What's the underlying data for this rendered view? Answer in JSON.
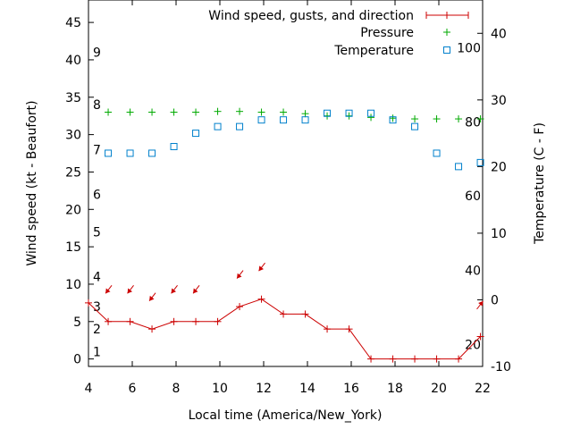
{
  "chart_data": {
    "type": "line",
    "xlabel": "Local time (America/New_York)",
    "ylabel_left": "Wind speed (kt - Beaufort)",
    "ylabel_right": "Temperature (C - F)",
    "xlim": [
      4,
      22
    ],
    "xticks": [
      "4",
      "6",
      "8",
      "10",
      "12",
      "14",
      "16",
      "18",
      "20",
      "22"
    ],
    "ylim_left": [
      -1,
      48
    ],
    "yticks_left": [
      "0",
      "5",
      "10",
      "15",
      "20",
      "25",
      "30",
      "35",
      "40",
      "45"
    ],
    "ylim_right": [
      -10,
      45
    ],
    "yticks_right": [
      "-10",
      "0",
      "10",
      "20",
      "30",
      "40"
    ],
    "beaufort_labels": [
      {
        "label": "1",
        "wind": 1
      },
      {
        "label": "2",
        "wind": 4
      },
      {
        "label": "3",
        "wind": 7
      },
      {
        "label": "4",
        "wind": 11
      },
      {
        "label": "5",
        "wind": 17
      },
      {
        "label": "6",
        "wind": 22
      },
      {
        "label": "7",
        "wind": 28
      },
      {
        "label": "8",
        "wind": 34
      },
      {
        "label": "9",
        "wind": 41
      }
    ],
    "fahrenheit_labels": [
      {
        "label": "20",
        "celsius": -6.7
      },
      {
        "label": "40",
        "celsius": 4.4
      },
      {
        "label": "60",
        "celsius": 15.6
      },
      {
        "label": "80",
        "celsius": 26.7
      },
      {
        "label": "100",
        "celsius": 37.8
      }
    ],
    "legend_position": "top-right",
    "series": [
      {
        "name": "Wind speed, gusts, and direction",
        "color": "#cc0000",
        "marker": "plus-line",
        "axis": "left",
        "x": [
          4,
          4.9,
          5.9,
          6.9,
          7.9,
          8.9,
          9.9,
          10.9,
          11.9,
          12.9,
          13.9,
          14.9,
          15.9,
          16.9,
          17.9,
          18.9,
          19.9,
          20.9,
          21.9
        ],
        "y": [
          7.5,
          5,
          5,
          4,
          5,
          5,
          5,
          7,
          8,
          6,
          6,
          4,
          4,
          0,
          0,
          0,
          0,
          0,
          3
        ]
      },
      {
        "name": "Pressure",
        "color": "#00aa00",
        "marker": "plus",
        "axis": "left",
        "x": [
          4.9,
          5.9,
          6.9,
          7.9,
          8.9,
          9.9,
          10.9,
          11.9,
          12.9,
          13.9,
          14.9,
          15.9,
          16.9,
          17.9,
          18.9,
          19.9,
          20.9,
          21.9
        ],
        "y": [
          33,
          33,
          33,
          33,
          33,
          33.1,
          33.1,
          33,
          33,
          32.8,
          32.5,
          32.5,
          32.3,
          32.2,
          32.1,
          32.1,
          32.1,
          32.1
        ]
      },
      {
        "name": "Temperature",
        "color": "#0080cc",
        "marker": "square",
        "axis": "right",
        "x": [
          4.9,
          5.9,
          6.9,
          7.9,
          8.9,
          9.9,
          10.9,
          11.9,
          12.9,
          13.9,
          14.9,
          15.9,
          16.9,
          17.9,
          18.9,
          19.9,
          20.9,
          21.9
        ],
        "y": [
          22,
          22,
          22,
          23,
          25,
          26,
          26,
          27,
          27,
          27,
          28,
          28,
          28,
          27,
          26,
          22,
          20,
          20.6
        ]
      }
    ],
    "wind_arrows": {
      "color": "#cc0000",
      "x": [
        4.9,
        5.9,
        6.9,
        7.9,
        8.9,
        10.9,
        11.9,
        21.9
      ],
      "y": [
        9,
        9,
        8,
        9,
        9,
        11,
        12,
        7.5
      ],
      "dir": [
        "SW",
        "SW",
        "SW",
        "SW",
        "SW",
        "SW",
        "SW",
        "NE"
      ]
    }
  }
}
